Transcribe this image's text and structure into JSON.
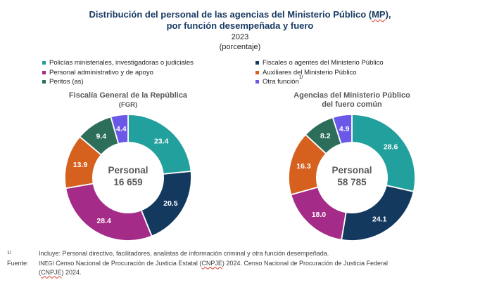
{
  "title": {
    "line1_pre": "Distribución del personal de las agencias del Ministerio Público (",
    "acronym": "MP",
    "line1_post": "),",
    "line2": "por función desempeñada y fuero",
    "year": "2023",
    "unit": "(porcentaje)"
  },
  "legend": {
    "items": [
      {
        "label": "Policías ministeriales, investigadoras o judiciales",
        "color": "#22a09e"
      },
      {
        "label": "Personal administrativo y de apoyo",
        "color": "#a42b87"
      },
      {
        "label": "Peritos (as)",
        "color": "#2d6e5b"
      },
      {
        "label": "Fiscales o agentes del Ministerio Público",
        "color": "#14395f"
      },
      {
        "label": "Auxiliares del Ministerio Público",
        "color": "#d6611f"
      },
      {
        "label": "Otra función",
        "sup": "1/",
        "color": "#6b58e8"
      }
    ]
  },
  "chart_data": [
    {
      "type": "pie",
      "variant": "donut",
      "title": "Fiscalía General de la República",
      "title2": "(FGR)",
      "center_label": "Personal",
      "center_value": "16 659",
      "categories": [
        "Policías ministeriales, investigadoras o judiciales",
        "Fiscales o agentes del Ministerio Público",
        "Personal administrativo y de apoyo",
        "Auxiliares del Ministerio Público",
        "Peritos (as)",
        "Otra función"
      ],
      "values": [
        23.4,
        20.5,
        28.4,
        13.9,
        9.4,
        4.4
      ],
      "colors": [
        "#22a09e",
        "#14395f",
        "#a42b87",
        "#d6611f",
        "#2d6e5b",
        "#6b58e8"
      ],
      "legend_position": "top",
      "start_angle_deg": -90,
      "direction": "clockwise"
    },
    {
      "type": "pie",
      "variant": "donut",
      "title": "Agencias del Ministerio Público",
      "title2": "del fuero común",
      "center_label": "Personal",
      "center_value": "58 785",
      "categories": [
        "Policías ministeriales, investigadoras o judiciales",
        "Fiscales o agentes del Ministerio Público",
        "Personal administrativo y de apoyo",
        "Auxiliares del Ministerio Público",
        "Peritos (as)",
        "Otra función"
      ],
      "values": [
        28.6,
        24.1,
        18.0,
        16.3,
        8.2,
        4.9
      ],
      "colors": [
        "#22a09e",
        "#14395f",
        "#a42b87",
        "#d6611f",
        "#2d6e5b",
        "#6b58e8"
      ],
      "legend_position": "top",
      "start_angle_deg": -90,
      "direction": "clockwise"
    }
  ],
  "footnote": {
    "marker": "1/",
    "text": "Incluye: Personal directivo, facilitadores, analistas de información criminal y otra función desempeñada."
  },
  "source": {
    "label": "Fuente:",
    "inegi": "INEGI",
    "seg1": " Censo Nacional de Procuración de Justicia Estatal (",
    "acr1": "CNPJE",
    "seg2": ") 2024. Censo Nacional de Procuración de Justicia Federal",
    "seg3": "(",
    "acr2": "CNPJE",
    "seg4": ") 2024."
  },
  "colors": {
    "title_text": "#1a3b63",
    "chart_title_text": "#58595b",
    "center_text": "#595959",
    "slice_label_text": "#ffffff",
    "squiggle": "#de3b2b"
  }
}
